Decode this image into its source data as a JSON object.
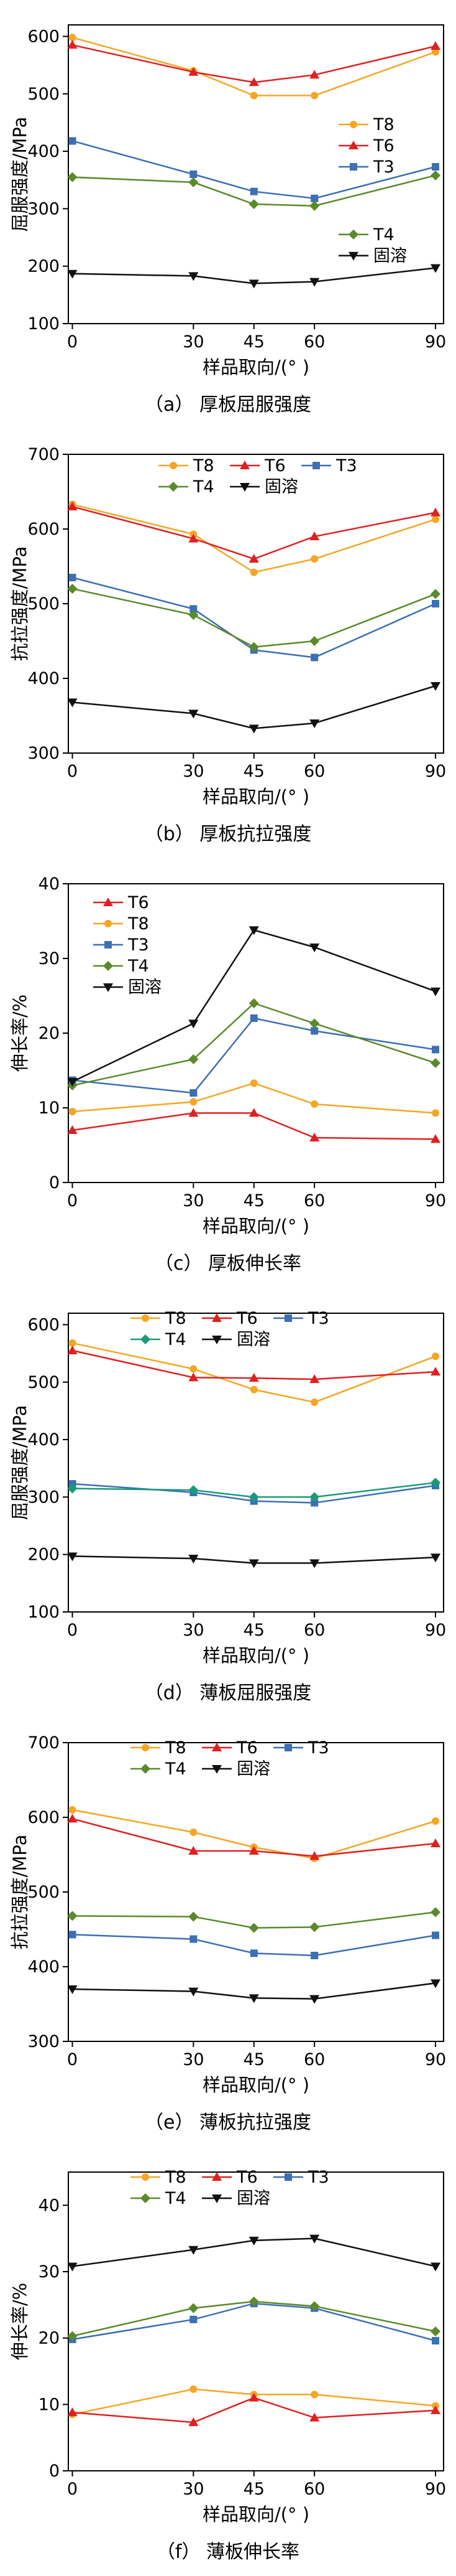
{
  "chart_data": [
    {
      "type": "line",
      "caption": "（a） 厚板屈服强度",
      "xlabel": "样品取向/(° )",
      "ylabel": "屈服强度/MPa",
      "x": [
        0,
        30,
        45,
        60,
        90
      ],
      "xlim": [
        -1,
        92
      ],
      "xticks": [
        0,
        30,
        45,
        60,
        90
      ],
      "ylim": [
        100,
        620
      ],
      "yticks": [
        100,
        200,
        300,
        400,
        500,
        600
      ],
      "legend_position": "right",
      "series": [
        {
          "name": "T8",
          "color": "#f5a623",
          "marker": "circle",
          "values": [
            598,
            540,
            497,
            497,
            573
          ]
        },
        {
          "name": "T6",
          "color": "#e02020",
          "marker": "triangle-up",
          "values": [
            585,
            538,
            520,
            533,
            583
          ]
        },
        {
          "name": "T3",
          "color": "#3c6fb4",
          "marker": "square",
          "values": [
            418,
            360,
            330,
            318,
            373
          ]
        },
        {
          "name": "T4",
          "color": "#5a8a2a",
          "marker": "diamond",
          "values": [
            355,
            346,
            308,
            305,
            358
          ]
        },
        {
          "name": "固溶",
          "color": "#111111",
          "marker": "triangle-down",
          "values": [
            187,
            183,
            170,
            173,
            197
          ]
        }
      ]
    },
    {
      "type": "line",
      "caption": "（b） 厚板抗拉强度",
      "xlabel": "样品取向/(° )",
      "ylabel": "抗拉强度/MPa",
      "x": [
        0,
        30,
        45,
        60,
        90
      ],
      "xlim": [
        -1,
        92
      ],
      "xticks": [
        0,
        30,
        45,
        60,
        90
      ],
      "ylim": [
        300,
        700
      ],
      "yticks": [
        300,
        400,
        500,
        600,
        700
      ],
      "legend_position": "top",
      "series": [
        {
          "name": "T8",
          "color": "#f5a623",
          "marker": "circle",
          "values": [
            633,
            593,
            542,
            560,
            613
          ]
        },
        {
          "name": "T6",
          "color": "#e02020",
          "marker": "triangle-up",
          "values": [
            630,
            587,
            560,
            590,
            622
          ]
        },
        {
          "name": "T3",
          "color": "#3c6fb4",
          "marker": "square",
          "values": [
            535,
            493,
            438,
            428,
            500
          ]
        },
        {
          "name": "T4",
          "color": "#5a8a2a",
          "marker": "diamond",
          "values": [
            520,
            485,
            442,
            450,
            513
          ]
        },
        {
          "name": "固溶",
          "color": "#111111",
          "marker": "triangle-down",
          "values": [
            368,
            353,
            333,
            340,
            390
          ]
        }
      ]
    },
    {
      "type": "line",
      "caption": "（c） 厚板伸长率",
      "xlabel": "样品取向/(° )",
      "ylabel": "伸长率/%",
      "x": [
        0,
        30,
        45,
        60,
        90
      ],
      "xlim": [
        -1,
        92
      ],
      "xticks": [
        0,
        30,
        45,
        60,
        90
      ],
      "ylim": [
        0,
        40
      ],
      "yticks": [
        0,
        10,
        20,
        30,
        40
      ],
      "legend_position": "top-left",
      "series": [
        {
          "name": "T6",
          "color": "#e02020",
          "marker": "triangle-up",
          "values": [
            7,
            9.3,
            9.3,
            6,
            5.8
          ]
        },
        {
          "name": "T8",
          "color": "#f5a623",
          "marker": "circle",
          "values": [
            9.5,
            10.8,
            13.3,
            10.5,
            9.3
          ]
        },
        {
          "name": "T3",
          "color": "#3c6fb4",
          "marker": "square",
          "values": [
            13.7,
            12,
            22,
            20.3,
            17.8
          ]
        },
        {
          "name": "T4",
          "color": "#5a8a2a",
          "marker": "diamond",
          "values": [
            13,
            16.5,
            24,
            21.3,
            16
          ]
        },
        {
          "name": "固溶",
          "color": "#111111",
          "marker": "triangle-down",
          "values": [
            13.5,
            21.3,
            33.8,
            31.5,
            25.6
          ]
        }
      ]
    },
    {
      "type": "line",
      "caption": "（d） 薄板屈服强度",
      "xlabel": "样品取向/(° )",
      "ylabel": "屈服强度/MPa",
      "x": [
        0,
        30,
        45,
        60,
        90
      ],
      "xlim": [
        -1,
        92
      ],
      "xticks": [
        0,
        30,
        45,
        60,
        90
      ],
      "ylim": [
        100,
        620
      ],
      "yticks": [
        100,
        200,
        300,
        400,
        500,
        600
      ],
      "legend_position": "top",
      "series": [
        {
          "name": "T8",
          "color": "#f5a623",
          "marker": "circle",
          "values": [
            568,
            523,
            487,
            465,
            545
          ]
        },
        {
          "name": "T6",
          "color": "#e02020",
          "marker": "triangle-up",
          "values": [
            555,
            508,
            507,
            505,
            518
          ]
        },
        {
          "name": "T3",
          "color": "#3c6fb4",
          "marker": "square",
          "values": [
            323,
            308,
            293,
            290,
            320
          ]
        },
        {
          "name": "T4",
          "color": "#1a9a7a",
          "marker": "diamond",
          "values": [
            315,
            312,
            300,
            300,
            325
          ]
        },
        {
          "name": "固溶",
          "color": "#111111",
          "marker": "triangle-down",
          "values": [
            197,
            193,
            185,
            185,
            195
          ]
        }
      ]
    },
    {
      "type": "line",
      "caption": "（e） 薄板抗拉强度",
      "xlabel": "样品取向/(° )",
      "ylabel": "抗拉强度/MPa",
      "x": [
        0,
        30,
        45,
        60,
        90
      ],
      "xlim": [
        -1,
        92
      ],
      "xticks": [
        0,
        30,
        45,
        60,
        90
      ],
      "ylim": [
        300,
        700
      ],
      "yticks": [
        300,
        400,
        500,
        600,
        700
      ],
      "legend_position": "top",
      "series": [
        {
          "name": "T8",
          "color": "#f5a623",
          "marker": "circle",
          "values": [
            610,
            580,
            560,
            545,
            595
          ]
        },
        {
          "name": "T6",
          "color": "#e02020",
          "marker": "triangle-up",
          "values": [
            598,
            555,
            555,
            548,
            565
          ]
        },
        {
          "name": "T3",
          "color": "#3c6fb4",
          "marker": "square",
          "values": [
            443,
            437,
            418,
            415,
            442
          ]
        },
        {
          "name": "T4",
          "color": "#5a8a2a",
          "marker": "diamond",
          "values": [
            468,
            467,
            452,
            453,
            473
          ]
        },
        {
          "name": "固溶",
          "color": "#111111",
          "marker": "triangle-down",
          "values": [
            370,
            367,
            358,
            357,
            378
          ]
        }
      ]
    },
    {
      "type": "line",
      "caption": "（f） 薄板伸长率",
      "xlabel": "样品取向/(° )",
      "ylabel": "伸长率/%",
      "x": [
        0,
        30,
        45,
        60,
        90
      ],
      "xlim": [
        -1,
        92
      ],
      "xticks": [
        0,
        30,
        45,
        60,
        90
      ],
      "ylim": [
        0,
        45
      ],
      "yticks": [
        0,
        10,
        20,
        30,
        40
      ],
      "legend_position": "top",
      "series": [
        {
          "name": "T8",
          "color": "#f5a623",
          "marker": "circle",
          "values": [
            8.5,
            12.3,
            11.5,
            11.5,
            9.8
          ]
        },
        {
          "name": "T6",
          "color": "#e02020",
          "marker": "triangle-up",
          "values": [
            8.8,
            7.3,
            11,
            8,
            9.1
          ]
        },
        {
          "name": "T3",
          "color": "#3c6fb4",
          "marker": "square",
          "values": [
            19.8,
            22.8,
            25.2,
            24.5,
            19.6
          ]
        },
        {
          "name": "T4",
          "color": "#5a8a2a",
          "marker": "diamond",
          "values": [
            20.3,
            24.5,
            25.5,
            24.8,
            21
          ]
        },
        {
          "name": "固溶",
          "color": "#111111",
          "marker": "triangle-down",
          "values": [
            30.8,
            33.3,
            34.7,
            35,
            30.8
          ]
        }
      ]
    }
  ]
}
